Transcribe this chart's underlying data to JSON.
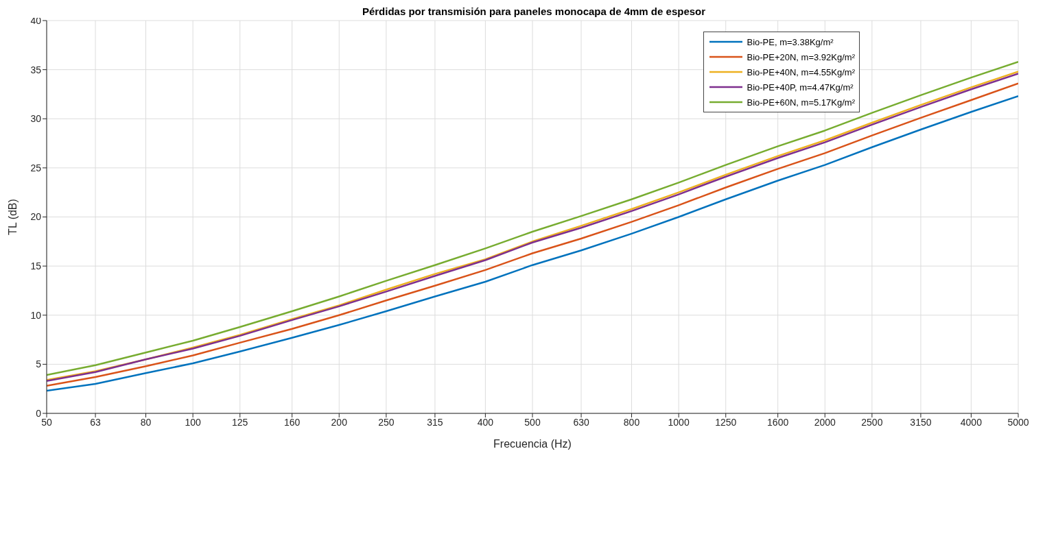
{
  "chart_data": {
    "type": "line",
    "title": "Pérdidas por transmisión para paneles monocapa de 4mm de espesor",
    "xlabel": "Frecuencia (Hz)",
    "ylabel": "TL (dB)",
    "x": [
      50,
      63,
      80,
      100,
      125,
      160,
      200,
      250,
      315,
      400,
      500,
      630,
      800,
      1000,
      1250,
      1600,
      2000,
      2500,
      3150,
      4000,
      5000
    ],
    "series": [
      {
        "name": "Bio-PE, m=3.38Kg/m²",
        "color": "#0072bd",
        "values": [
          2.3,
          3.0,
          4.1,
          5.1,
          6.3,
          7.7,
          9.0,
          10.4,
          11.9,
          13.4,
          15.1,
          16.6,
          18.3,
          20.0,
          21.8,
          23.7,
          25.3,
          27.1,
          28.9,
          30.7,
          32.3
        ]
      },
      {
        "name": "Bio-PE+20N, m=3.92Kg/m²",
        "color": "#d95319",
        "values": [
          2.8,
          3.7,
          4.8,
          5.9,
          7.2,
          8.6,
          10.0,
          11.5,
          13.0,
          14.6,
          16.3,
          17.8,
          19.5,
          21.2,
          23.0,
          24.9,
          26.5,
          28.3,
          30.1,
          31.9,
          33.6
        ]
      },
      {
        "name": "Bio-PE+40N, m=4.55Kg/m²",
        "color": "#edb120",
        "values": [
          3.4,
          4.3,
          5.5,
          6.7,
          8.0,
          9.6,
          11.0,
          12.6,
          14.2,
          15.7,
          17.5,
          19.1,
          20.8,
          22.5,
          24.3,
          26.2,
          27.8,
          29.6,
          31.4,
          33.2,
          34.8
        ]
      },
      {
        "name": "Bio-PE+40P, m=4.47Kg/m²",
        "color": "#7e2f8e",
        "values": [
          3.3,
          4.2,
          5.5,
          6.6,
          7.9,
          9.5,
          10.9,
          12.4,
          14.0,
          15.6,
          17.4,
          18.9,
          20.6,
          22.3,
          24.1,
          26.0,
          27.6,
          29.4,
          31.2,
          33.0,
          34.6
        ]
      },
      {
        "name": "Bio-PE+60N, m=5.17Kg/m²",
        "color": "#77ac30",
        "values": [
          3.9,
          4.9,
          6.2,
          7.4,
          8.8,
          10.4,
          11.9,
          13.5,
          15.1,
          16.8,
          18.5,
          20.1,
          21.8,
          23.5,
          25.3,
          27.2,
          28.8,
          30.6,
          32.4,
          34.2,
          35.8
        ]
      }
    ],
    "log": "x",
    "xlim": [
      50,
      5000
    ],
    "xticks": [
      50,
      63,
      80,
      100,
      125,
      160,
      200,
      250,
      315,
      400,
      500,
      630,
      800,
      1000,
      1250,
      1600,
      2000,
      2500,
      3150,
      4000,
      5000
    ],
    "ylim": [
      0,
      40
    ],
    "yticks": [
      0,
      5,
      10,
      15,
      20,
      25,
      30,
      35,
      40
    ],
    "grid": true,
    "legend": "top right",
    "marker": "none",
    "line_style": "solid"
  }
}
